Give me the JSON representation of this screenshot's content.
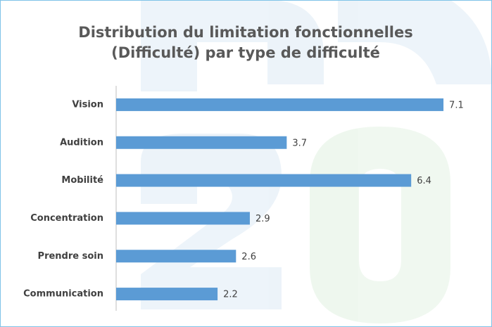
{
  "chart_data": {
    "type": "bar",
    "orientation": "horizontal",
    "title": [
      "Distribution du limitation fonctionnelles",
      "(Difficulté) par type de difficulté"
    ],
    "categories": [
      "Vision",
      "Audition",
      "Mobilité",
      "Concentration",
      "Prendre soin",
      "Communication"
    ],
    "values": [
      7.1,
      3.7,
      6.4,
      2.9,
      2.6,
      2.2
    ],
    "color": "#5b9bd5",
    "xlim": [
      0,
      8
    ]
  }
}
